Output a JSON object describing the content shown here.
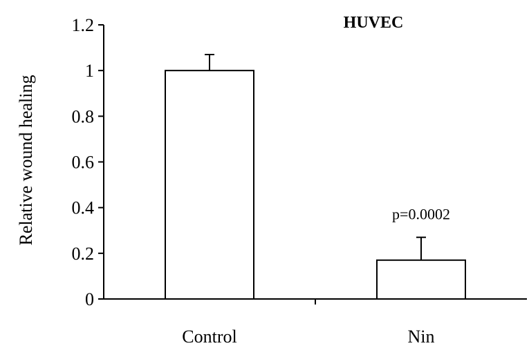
{
  "chart_data": {
    "type": "bar",
    "title": "HUVEC",
    "ylabel": "Relative wound healing",
    "xlabel": "",
    "categories": [
      "Control",
      "Nin"
    ],
    "values": [
      1.0,
      0.17
    ],
    "errors": [
      0.07,
      0.1
    ],
    "annotations": [
      "",
      "p=0.0002"
    ],
    "ylim": [
      0,
      1.2
    ],
    "yticks": [
      0,
      0.2,
      0.4,
      0.6,
      0.8,
      1,
      1.2
    ],
    "ytick_labels": [
      "0",
      "0.2",
      "0.4",
      "0.6",
      "0.8",
      "1",
      "1.2"
    ],
    "grid": false,
    "colors": {
      "bar_fill": "#ffffff",
      "bar_stroke": "#000000"
    }
  }
}
